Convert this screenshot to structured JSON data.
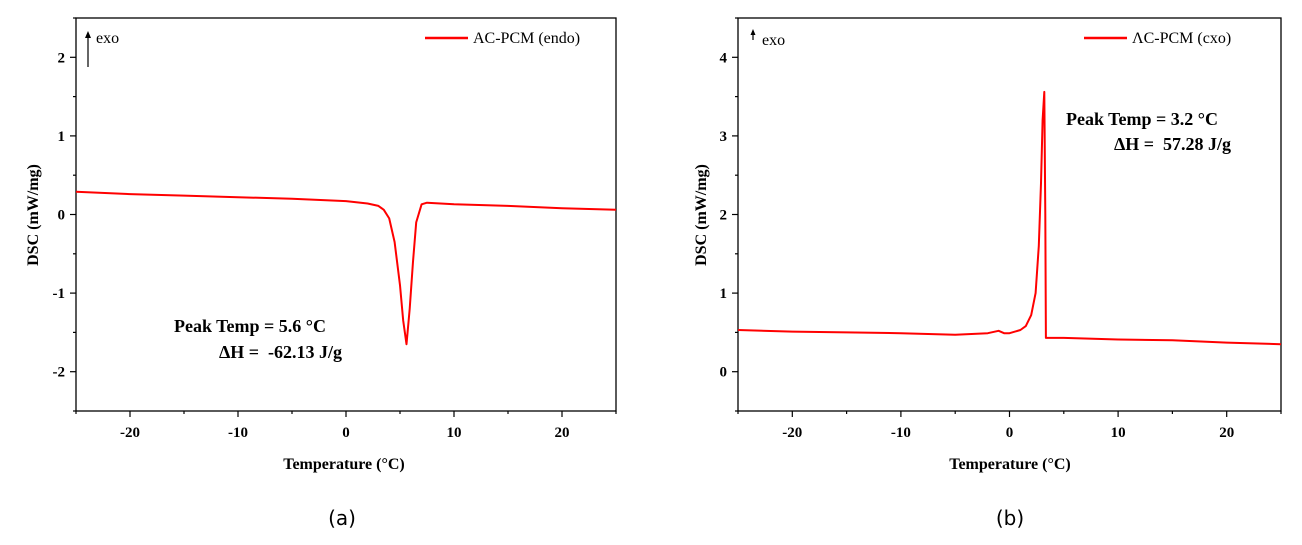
{
  "chart_data": [
    {
      "type": "line",
      "panel_label": "(a)",
      "xlabel": "Temperature (°C)",
      "ylabel": "DSC (mW/mg)",
      "xlim": [
        -25,
        25
      ],
      "ylim": [
        -2.5,
        2.5
      ],
      "xticks": [
        -20,
        -10,
        0,
        10,
        20
      ],
      "yticks": [
        -2,
        -1,
        0,
        1,
        2
      ],
      "xtick_labels": [
        "-20",
        "-10",
        "0",
        "10",
        "20"
      ],
      "ytick_labels": [
        "-2",
        "-1",
        "0",
        "1",
        "2"
      ],
      "grid": false,
      "legend_position": "top-right",
      "series": [
        {
          "name": "AC-PCM (endo)",
          "color": "#ff0000",
          "x": [
            -25,
            -20,
            -15,
            -10,
            -5,
            0,
            2,
            3,
            3.5,
            4,
            4.5,
            5,
            5.3,
            5.6,
            5.9,
            6.2,
            6.5,
            7,
            7.5,
            10,
            15,
            20,
            25
          ],
          "y": [
            0.29,
            0.26,
            0.24,
            0.22,
            0.2,
            0.17,
            0.14,
            0.11,
            0.06,
            -0.05,
            -0.35,
            -0.9,
            -1.35,
            -1.65,
            -1.2,
            -0.6,
            -0.1,
            0.13,
            0.15,
            0.13,
            0.11,
            0.08,
            0.06
          ]
        }
      ],
      "annotations": {
        "exo_marker": "exo",
        "peak": "Peak Temp = 5.6 °C",
        "enthalpy": "ΔH =  -62.13 J/g"
      }
    },
    {
      "type": "line",
      "panel_label": "(b)",
      "xlabel": "Temperature (°C)",
      "ylabel": "DSC (mW/mg)",
      "xlim": [
        -25,
        25
      ],
      "ylim": [
        -0.5,
        4.5
      ],
      "xticks": [
        -20,
        -10,
        0,
        10,
        20
      ],
      "yticks": [
        0,
        1,
        2,
        3,
        4
      ],
      "xtick_labels": [
        "-20",
        "-10",
        "0",
        "10",
        "20"
      ],
      "ytick_labels": [
        "0",
        "1",
        "2",
        "3",
        "4"
      ],
      "grid": false,
      "legend_position": "top-right",
      "series": [
        {
          "name": "ΛC-PCM (cxo)",
          "color": "#ff0000",
          "x": [
            -25,
            -20,
            -15,
            -10,
            -5,
            -2,
            -1,
            -0.5,
            0,
            1,
            1.5,
            2,
            2.4,
            2.7,
            2.9,
            3.05,
            3.2,
            3.3,
            3.35,
            5,
            10,
            15,
            20,
            25
          ],
          "y": [
            0.53,
            0.51,
            0.5,
            0.49,
            0.47,
            0.49,
            0.52,
            0.49,
            0.49,
            0.53,
            0.58,
            0.72,
            1.0,
            1.6,
            2.4,
            3.2,
            3.56,
            2.0,
            0.43,
            0.43,
            0.41,
            0.4,
            0.37,
            0.35
          ]
        }
      ],
      "annotations": {
        "exo_marker": "exo",
        "peak": "Peak Temp = 3.2 °C",
        "enthalpy": "ΔH =  57.28 J/g"
      }
    }
  ]
}
